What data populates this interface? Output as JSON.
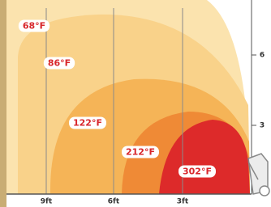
{
  "zones": [
    {
      "label": "68°F"
    },
    {
      "label": "86°F"
    },
    {
      "label": "122°F"
    },
    {
      "label": "212°F"
    },
    {
      "label": "302°F"
    }
  ],
  "x_labels": [
    "9ft",
    "6ft",
    "3ft"
  ],
  "y_labels": [
    "6",
    "3"
  ]
}
